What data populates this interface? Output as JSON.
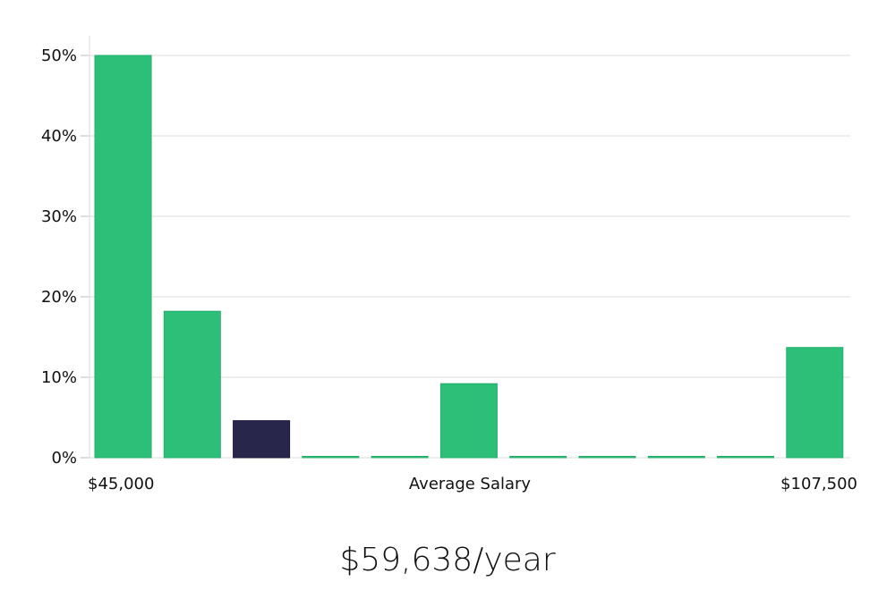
{
  "chart_data": {
    "type": "bar",
    "title": "",
    "xlabel": "Average Salary",
    "ylabel": "",
    "x_range_labels": {
      "min": "$45,000",
      "max": "$107,500"
    },
    "y_ticks": [
      "0%",
      "10%",
      "20%",
      "30%",
      "40%",
      "50%"
    ],
    "ylim": [
      0,
      52
    ],
    "grid": true,
    "bar_color": "#2bbf77",
    "highlight_color": "#28264a",
    "highlight_index": 2,
    "values": [
      50,
      18.2,
      4.6,
      0,
      0,
      9.2,
      0,
      0,
      0,
      0,
      13.7
    ]
  },
  "salary": "$59,638/year"
}
